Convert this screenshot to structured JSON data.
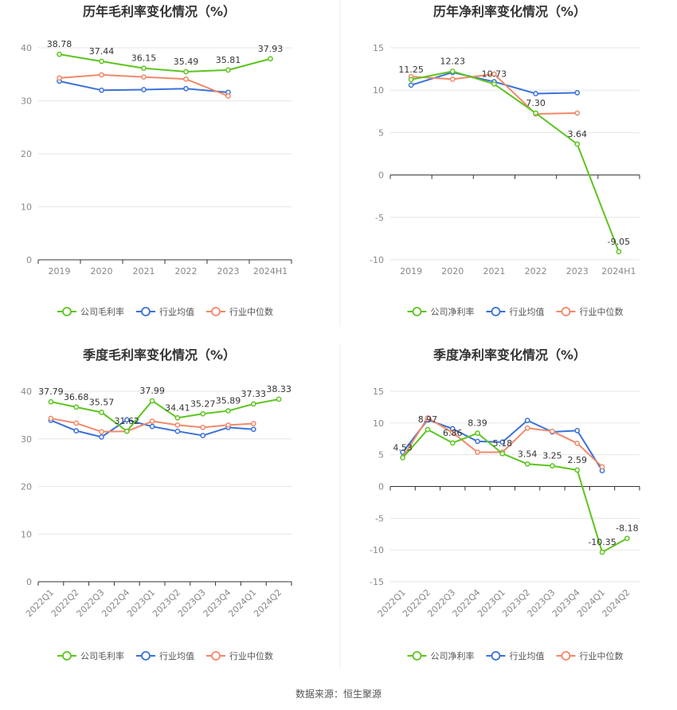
{
  "colors": {
    "company": "#5cc51f",
    "avg": "#3a72d8",
    "median": "#f0896a",
    "grid": "#e6e6e6",
    "axis": "#333333"
  },
  "source": "数据来源：恒生聚源",
  "chart_data": [
    {
      "type": "line",
      "title": "历年毛利率变化情况（%）",
      "categories": [
        "2019",
        "2020",
        "2021",
        "2022",
        "2023",
        "2024H1"
      ],
      "ylim": [
        0,
        40
      ],
      "yticks": [
        0,
        10,
        20,
        30,
        40
      ],
      "series": [
        {
          "name": "公司毛利率",
          "key": "company",
          "values": [
            38.78,
            37.44,
            36.15,
            35.49,
            35.81,
            37.93
          ],
          "labels": [
            "38.78",
            "37.44",
            "36.15",
            "35.49",
            "35.81",
            "37.93"
          ]
        },
        {
          "name": "行业均值",
          "key": "avg",
          "values": [
            33.7,
            32.0,
            32.1,
            32.3,
            31.6,
            null
          ]
        },
        {
          "name": "行业中位数",
          "key": "median",
          "values": [
            34.3,
            34.9,
            34.5,
            34.1,
            30.9,
            null
          ]
        }
      ]
    },
    {
      "type": "line",
      "title": "历年净利率变化情况（%）",
      "categories": [
        "2019",
        "2020",
        "2021",
        "2022",
        "2023",
        "2024H1"
      ],
      "ylim": [
        -10,
        15
      ],
      "yticks": [
        -10,
        -5,
        0,
        5,
        10,
        15
      ],
      "series": [
        {
          "name": "公司净利率",
          "key": "company",
          "values": [
            11.25,
            12.23,
            10.73,
            7.3,
            3.64,
            -9.05
          ],
          "labels": [
            "11.25",
            "12.23",
            "10.73",
            "7.30",
            "3.64",
            "-9.05"
          ]
        },
        {
          "name": "行业均值",
          "key": "avg",
          "values": [
            10.6,
            12.1,
            11.0,
            9.6,
            9.7,
            null
          ]
        },
        {
          "name": "行业中位数",
          "key": "median",
          "values": [
            11.6,
            11.3,
            11.9,
            7.2,
            7.3,
            null
          ]
        }
      ]
    },
    {
      "type": "line",
      "title": "季度毛利率变化情况（%）",
      "categories": [
        "2022Q1",
        "2022Q2",
        "2022Q3",
        "2022Q4",
        "2023Q1",
        "2023Q2",
        "2023Q3",
        "2023Q4",
        "2024Q1",
        "2024Q2"
      ],
      "ylim": [
        0,
        40
      ],
      "yticks": [
        0,
        10,
        20,
        30,
        40
      ],
      "series": [
        {
          "name": "公司毛利率",
          "key": "company",
          "values": [
            37.79,
            36.68,
            35.57,
            31.62,
            37.99,
            34.41,
            35.27,
            35.89,
            37.33,
            38.33
          ],
          "labels": [
            "37.79",
            "36.68",
            "35.57",
            "31.62",
            "37.99",
            "34.41",
            "35.27",
            "35.89",
            "37.33",
            "38.33"
          ]
        },
        {
          "name": "行业均值",
          "key": "avg",
          "values": [
            33.9,
            31.7,
            30.4,
            34.0,
            32.6,
            31.6,
            30.7,
            32.4,
            32.0,
            null
          ]
        },
        {
          "name": "行业中位数",
          "key": "median",
          "values": [
            34.3,
            33.3,
            31.5,
            31.6,
            33.7,
            32.9,
            32.4,
            32.9,
            33.2,
            null
          ]
        }
      ]
    },
    {
      "type": "line",
      "title": "季度净利率变化情况（%）",
      "categories": [
        "2022Q1",
        "2022Q2",
        "2022Q3",
        "2022Q4",
        "2023Q1",
        "2023Q2",
        "2023Q3",
        "2023Q4",
        "2024Q1",
        "2024Q2"
      ],
      "ylim": [
        -15,
        15
      ],
      "yticks": [
        -15,
        -10,
        -5,
        0,
        5,
        10,
        15
      ],
      "series": [
        {
          "name": "公司净利率",
          "key": "company",
          "values": [
            4.53,
            8.97,
            6.86,
            8.39,
            5.18,
            3.54,
            3.25,
            2.59,
            -10.35,
            -8.18
          ],
          "labels": [
            "4.53",
            "8.97",
            "6.86",
            "8.39",
            "5.18",
            "3.54",
            "3.25",
            "2.59",
            "-10.35",
            "-8.18"
          ]
        },
        {
          "name": "行业均值",
          "key": "avg",
          "values": [
            5.4,
            10.5,
            9.1,
            7.1,
            7.0,
            10.4,
            8.6,
            8.8,
            2.5,
            null
          ]
        },
        {
          "name": "行业中位数",
          "key": "median",
          "values": [
            4.6,
            10.8,
            8.5,
            5.4,
            5.4,
            9.2,
            8.7,
            6.8,
            3.1,
            null
          ]
        }
      ]
    }
  ]
}
